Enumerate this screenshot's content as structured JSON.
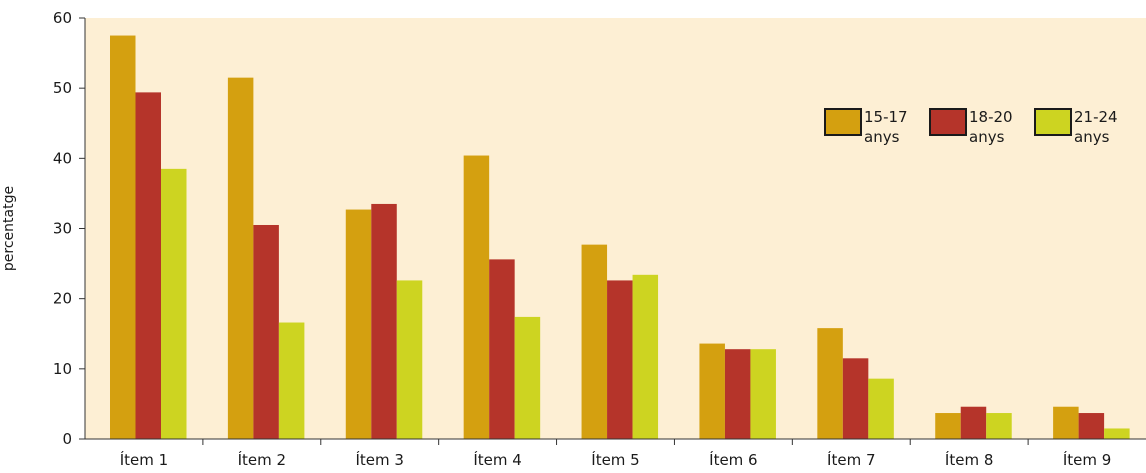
{
  "chart_data": {
    "type": "bar",
    "title": "",
    "xlabel": "",
    "ylabel": "percentatge",
    "ylim": [
      0,
      60
    ],
    "yticks": [
      0,
      10,
      20,
      30,
      40,
      50,
      60
    ],
    "grid": false,
    "legend_position": "top-right",
    "background_color": "#fdefd4",
    "categories": [
      "Ítem 1",
      "Ítem 2",
      "Ítem 3",
      "Ítem 4",
      "Ítem 5",
      "Ítem 6",
      "Ítem 7",
      "Ítem 8",
      "Ítem 9"
    ],
    "series": [
      {
        "name": "15-17 anys",
        "legend_lines": [
          "15-17",
          "anys"
        ],
        "color": "#d4a010",
        "values": [
          57.5,
          51.5,
          32.7,
          40.4,
          27.7,
          13.6,
          15.8,
          3.7,
          4.6
        ]
      },
      {
        "name": "18-20 anys",
        "legend_lines": [
          "18-20",
          "anys"
        ],
        "color": "#b5342a",
        "values": [
          49.4,
          30.5,
          33.5,
          25.6,
          22.6,
          12.8,
          11.5,
          4.6,
          3.7
        ]
      },
      {
        "name": "21-24 anys",
        "legend_lines": [
          "21-24",
          "anys"
        ],
        "color": "#cdd421",
        "values": [
          38.5,
          16.6,
          22.6,
          17.4,
          23.4,
          12.8,
          8.6,
          3.7,
          1.5
        ]
      }
    ]
  }
}
